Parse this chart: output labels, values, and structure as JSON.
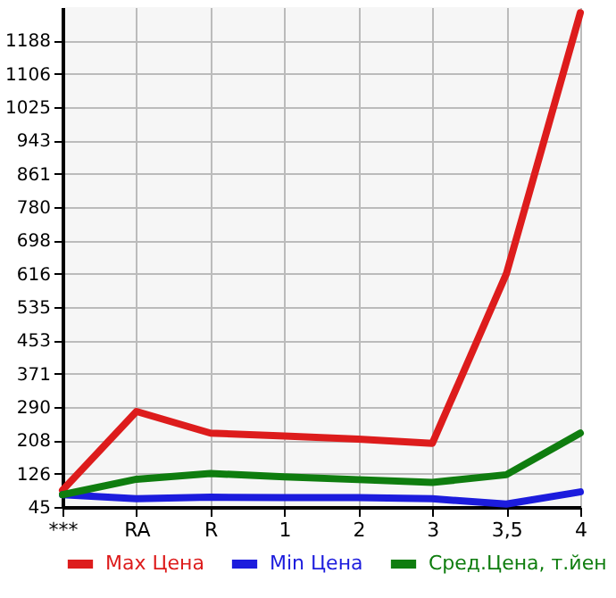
{
  "chart_data": {
    "type": "line",
    "categories": [
      "***",
      "RA",
      "R",
      "1",
      "2",
      "3",
      "3,5",
      "4"
    ],
    "series": [
      {
        "name": "Max Цена",
        "color": "#dd1c1c",
        "values": [
          86,
          279,
          226,
          219,
          211,
          201,
          616,
          1256
        ]
      },
      {
        "name": "Min Цена",
        "color": "#1c1cdd",
        "values": [
          75,
          65,
          69,
          68,
          68,
          65,
          52,
          82
        ]
      },
      {
        "name": "Сред.Цена, т.йен",
        "color": "#0f7d0f",
        "values": [
          75,
          113,
          127,
          119,
          112,
          105,
          124,
          226
        ]
      }
    ],
    "ylim": [
      45,
      1270
    ],
    "yticks": [
      45,
      126,
      208,
      290,
      371,
      453,
      535,
      616,
      698,
      780,
      861,
      943,
      1025,
      1106,
      1188
    ],
    "grid": true,
    "legend": "bottom",
    "marker": "none",
    "line_style": "solid"
  }
}
